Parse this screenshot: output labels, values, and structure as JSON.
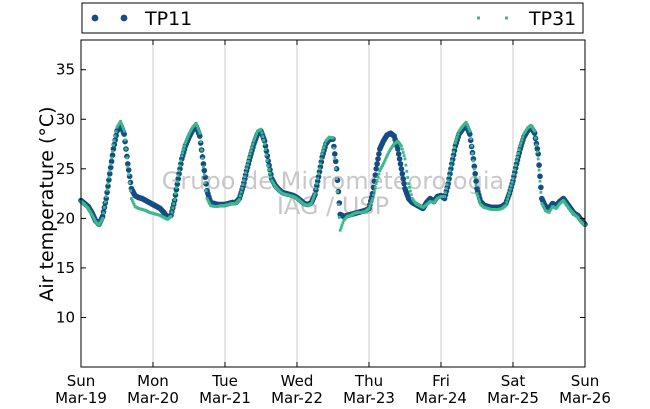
{
  "chart_data": {
    "type": "scatter",
    "title": "",
    "xlabel": "",
    "ylabel": "Air temperature (°C)",
    "ylim": [
      5,
      38
    ],
    "yticks": [
      10,
      15,
      20,
      25,
      30,
      35
    ],
    "xlim": [
      0,
      7
    ],
    "xtick_labels": [
      {
        "day": "Sun",
        "date": "Mar-19"
      },
      {
        "day": "Mon",
        "date": "Mar-20"
      },
      {
        "day": "Tue",
        "date": "Mar-21"
      },
      {
        "day": "Wed",
        "date": "Mar-22"
      },
      {
        "day": "Thu",
        "date": "Mar-23"
      },
      {
        "day": "Fri",
        "date": "Mar-24"
      },
      {
        "day": "Sat",
        "date": "Mar-25"
      },
      {
        "day": "Sun",
        "date": "Mar-26"
      }
    ],
    "grid": "vertical",
    "legend_position": "top, above plot",
    "watermark": [
      "Grupo de Micrometeorologia",
      "IAG / USP"
    ],
    "series": [
      {
        "name": "TP11",
        "color": "#154c84",
        "marker": "dot",
        "points": [
          [
            0.0,
            21.8
          ],
          [
            0.05,
            21.5
          ],
          [
            0.1,
            21.2
          ],
          [
            0.15,
            20.6
          ],
          [
            0.2,
            19.8
          ],
          [
            0.25,
            19.4
          ],
          [
            0.3,
            20.2
          ],
          [
            0.35,
            22.0
          ],
          [
            0.4,
            24.5
          ],
          [
            0.45,
            27.0
          ],
          [
            0.5,
            28.8
          ],
          [
            0.55,
            29.4
          ],
          [
            0.6,
            28.5
          ],
          [
            0.65,
            25.5
          ],
          [
            0.7,
            23.0
          ],
          [
            0.75,
            22.3
          ],
          [
            0.8,
            22.1
          ],
          [
            0.85,
            22.0
          ],
          [
            0.9,
            21.8
          ],
          [
            0.95,
            21.6
          ],
          [
            1.0,
            21.4
          ],
          [
            1.05,
            21.2
          ],
          [
            1.1,
            21.0
          ],
          [
            1.15,
            20.6
          ],
          [
            1.2,
            20.1
          ],
          [
            1.25,
            20.3
          ],
          [
            1.3,
            21.8
          ],
          [
            1.35,
            24.0
          ],
          [
            1.4,
            26.0
          ],
          [
            1.45,
            27.3
          ],
          [
            1.5,
            28.2
          ],
          [
            1.55,
            28.9
          ],
          [
            1.6,
            29.3
          ],
          [
            1.65,
            28.3
          ],
          [
            1.7,
            25.5
          ],
          [
            1.75,
            22.8
          ],
          [
            1.8,
            21.6
          ],
          [
            1.85,
            21.5
          ],
          [
            1.9,
            21.4
          ],
          [
            1.95,
            21.4
          ],
          [
            2.0,
            21.4
          ],
          [
            2.05,
            21.5
          ],
          [
            2.1,
            21.6
          ],
          [
            2.15,
            21.6
          ],
          [
            2.2,
            22.0
          ],
          [
            2.25,
            23.2
          ],
          [
            2.3,
            24.8
          ],
          [
            2.35,
            26.2
          ],
          [
            2.4,
            27.5
          ],
          [
            2.45,
            28.5
          ],
          [
            2.5,
            28.8
          ],
          [
            2.55,
            27.8
          ],
          [
            2.6,
            25.8
          ],
          [
            2.65,
            24.0
          ],
          [
            2.7,
            23.3
          ],
          [
            2.75,
            22.9
          ],
          [
            2.8,
            22.6
          ],
          [
            2.85,
            22.5
          ],
          [
            2.9,
            22.4
          ],
          [
            2.95,
            22.3
          ],
          [
            3.0,
            22.1
          ],
          [
            3.05,
            21.8
          ],
          [
            3.1,
            21.5
          ],
          [
            3.15,
            21.4
          ],
          [
            3.2,
            21.6
          ],
          [
            3.25,
            22.4
          ],
          [
            3.3,
            24.2
          ],
          [
            3.35,
            26.2
          ],
          [
            3.4,
            27.5
          ],
          [
            3.45,
            28.0
          ],
          [
            3.5,
            28.0
          ],
          [
            3.55,
            25.0
          ],
          [
            3.6,
            20.4
          ],
          [
            3.65,
            20.2
          ],
          [
            3.7,
            20.3
          ],
          [
            3.75,
            20.4
          ],
          [
            3.8,
            20.5
          ],
          [
            3.85,
            20.6
          ],
          [
            3.9,
            20.7
          ],
          [
            3.95,
            20.8
          ],
          [
            4.0,
            21.0
          ],
          [
            4.05,
            22.5
          ],
          [
            4.1,
            25.0
          ],
          [
            4.15,
            27.0
          ],
          [
            4.2,
            27.8
          ],
          [
            4.25,
            28.4
          ],
          [
            4.3,
            28.6
          ],
          [
            4.35,
            28.3
          ],
          [
            4.4,
            27.0
          ],
          [
            4.45,
            25.0
          ],
          [
            4.5,
            23.0
          ],
          [
            4.55,
            22.0
          ],
          [
            4.6,
            21.6
          ],
          [
            4.65,
            21.4
          ],
          [
            4.7,
            21.2
          ],
          [
            4.75,
            21.0
          ],
          [
            4.8,
            21.6
          ],
          [
            4.85,
            22.0
          ],
          [
            4.9,
            21.7
          ],
          [
            4.95,
            22.2
          ],
          [
            5.0,
            22.3
          ],
          [
            5.05,
            22.0
          ],
          [
            5.1,
            23.5
          ],
          [
            5.15,
            25.5
          ],
          [
            5.2,
            27.3
          ],
          [
            5.25,
            28.5
          ],
          [
            5.3,
            29.0
          ],
          [
            5.35,
            29.4
          ],
          [
            5.4,
            28.5
          ],
          [
            5.45,
            26.0
          ],
          [
            5.5,
            23.0
          ],
          [
            5.55,
            21.7
          ],
          [
            5.6,
            21.3
          ],
          [
            5.65,
            21.2
          ],
          [
            5.7,
            21.1
          ],
          [
            5.75,
            21.1
          ],
          [
            5.8,
            21.1
          ],
          [
            5.85,
            21.2
          ],
          [
            5.9,
            21.5
          ],
          [
            5.95,
            22.5
          ],
          [
            6.0,
            23.8
          ],
          [
            6.05,
            25.5
          ],
          [
            6.1,
            27.0
          ],
          [
            6.15,
            28.2
          ],
          [
            6.2,
            28.8
          ],
          [
            6.25,
            29.2
          ],
          [
            6.3,
            28.6
          ],
          [
            6.35,
            26.5
          ],
          [
            6.4,
            22.0
          ],
          [
            6.45,
            21.2
          ],
          [
            6.5,
            21.0
          ],
          [
            6.55,
            21.5
          ],
          [
            6.6,
            21.3
          ],
          [
            6.65,
            21.7
          ],
          [
            6.7,
            22.0
          ],
          [
            6.75,
            21.5
          ],
          [
            6.8,
            21.0
          ],
          [
            6.85,
            20.5
          ],
          [
            6.9,
            20.3
          ],
          [
            6.95,
            19.8
          ],
          [
            7.0,
            19.4
          ]
        ]
      },
      {
        "name": "TP31",
        "color": "#3cb88a",
        "marker": "small",
        "points": [
          [
            0.0,
            21.7
          ],
          [
            0.05,
            21.4
          ],
          [
            0.1,
            21.0
          ],
          [
            0.15,
            20.4
          ],
          [
            0.2,
            19.7
          ],
          [
            0.25,
            19.3
          ],
          [
            0.3,
            20.0
          ],
          [
            0.35,
            22.2
          ],
          [
            0.4,
            24.8
          ],
          [
            0.45,
            27.4
          ],
          [
            0.5,
            29.2
          ],
          [
            0.55,
            29.8
          ],
          [
            0.6,
            28.8
          ],
          [
            0.65,
            25.2
          ],
          [
            0.7,
            22.0
          ],
          [
            0.75,
            21.2
          ],
          [
            0.8,
            21.0
          ],
          [
            0.85,
            20.9
          ],
          [
            0.9,
            20.8
          ],
          [
            0.95,
            20.6
          ],
          [
            1.0,
            20.5
          ],
          [
            1.05,
            20.4
          ],
          [
            1.1,
            20.3
          ],
          [
            1.15,
            20.1
          ],
          [
            1.2,
            19.9
          ],
          [
            1.25,
            20.2
          ],
          [
            1.3,
            21.9
          ],
          [
            1.35,
            24.3
          ],
          [
            1.4,
            26.3
          ],
          [
            1.45,
            27.6
          ],
          [
            1.5,
            28.5
          ],
          [
            1.55,
            29.2
          ],
          [
            1.6,
            29.6
          ],
          [
            1.65,
            28.6
          ],
          [
            1.7,
            25.2
          ],
          [
            1.75,
            22.0
          ],
          [
            1.8,
            21.3
          ],
          [
            1.85,
            21.2
          ],
          [
            1.9,
            21.2
          ],
          [
            1.95,
            21.3
          ],
          [
            2.0,
            21.3
          ],
          [
            2.05,
            21.4
          ],
          [
            2.1,
            21.5
          ],
          [
            2.15,
            21.5
          ],
          [
            2.2,
            21.9
          ],
          [
            2.25,
            23.4
          ],
          [
            2.3,
            25.0
          ],
          [
            2.35,
            26.5
          ],
          [
            2.4,
            27.8
          ],
          [
            2.45,
            28.8
          ],
          [
            2.5,
            29.0
          ],
          [
            2.55,
            27.5
          ],
          [
            2.6,
            25.3
          ],
          [
            2.65,
            23.8
          ],
          [
            2.7,
            23.2
          ],
          [
            2.75,
            22.8
          ],
          [
            2.8,
            22.5
          ],
          [
            2.85,
            22.4
          ],
          [
            2.9,
            22.3
          ],
          [
            2.95,
            22.2
          ],
          [
            3.0,
            22.0
          ],
          [
            3.05,
            21.7
          ],
          [
            3.1,
            21.4
          ],
          [
            3.15,
            21.3
          ],
          [
            3.2,
            21.5
          ],
          [
            3.25,
            22.5
          ],
          [
            3.3,
            24.5
          ],
          [
            3.35,
            26.5
          ],
          [
            3.4,
            27.8
          ],
          [
            3.45,
            28.2
          ],
          [
            3.5,
            28.1
          ],
          [
            3.55,
            24.0
          ],
          [
            3.6,
            18.8
          ],
          [
            3.65,
            19.8
          ],
          [
            3.7,
            20.2
          ],
          [
            3.75,
            20.3
          ],
          [
            3.8,
            20.5
          ],
          [
            3.85,
            20.6
          ],
          [
            3.9,
            20.6
          ],
          [
            3.95,
            20.7
          ],
          [
            4.0,
            21.0
          ],
          [
            4.05,
            22.0
          ],
          [
            4.1,
            23.5
          ],
          [
            4.15,
            24.8
          ],
          [
            4.2,
            25.5
          ],
          [
            4.25,
            26.3
          ],
          [
            4.3,
            27.0
          ],
          [
            4.35,
            27.5
          ],
          [
            4.4,
            27.8
          ],
          [
            4.45,
            27.3
          ],
          [
            4.5,
            26.0
          ],
          [
            4.55,
            23.5
          ],
          [
            4.6,
            22.0
          ],
          [
            4.65,
            21.5
          ],
          [
            4.7,
            21.3
          ],
          [
            4.75,
            21.1
          ],
          [
            4.8,
            21.4
          ],
          [
            4.85,
            21.7
          ],
          [
            4.9,
            21.6
          ],
          [
            4.95,
            22.0
          ],
          [
            5.0,
            22.2
          ],
          [
            5.05,
            22.2
          ],
          [
            5.1,
            23.8
          ],
          [
            5.15,
            25.8
          ],
          [
            5.2,
            27.6
          ],
          [
            5.25,
            28.8
          ],
          [
            5.3,
            29.3
          ],
          [
            5.35,
            29.7
          ],
          [
            5.4,
            28.8
          ],
          [
            5.45,
            25.8
          ],
          [
            5.5,
            22.5
          ],
          [
            5.55,
            21.4
          ],
          [
            5.6,
            21.1
          ],
          [
            5.65,
            21.0
          ],
          [
            5.7,
            20.9
          ],
          [
            5.75,
            20.9
          ],
          [
            5.8,
            20.9
          ],
          [
            5.85,
            21.0
          ],
          [
            5.9,
            21.3
          ],
          [
            5.95,
            22.6
          ],
          [
            6.0,
            24.0
          ],
          [
            6.05,
            25.8
          ],
          [
            6.1,
            27.3
          ],
          [
            6.15,
            28.5
          ],
          [
            6.2,
            29.1
          ],
          [
            6.25,
            29.4
          ],
          [
            6.3,
            28.8
          ],
          [
            6.35,
            26.0
          ],
          [
            6.4,
            21.5
          ],
          [
            6.45,
            20.8
          ],
          [
            6.5,
            20.6
          ],
          [
            6.55,
            21.2
          ],
          [
            6.6,
            21.0
          ],
          [
            6.65,
            21.5
          ],
          [
            6.7,
            21.8
          ],
          [
            6.75,
            21.3
          ],
          [
            6.8,
            20.8
          ],
          [
            6.85,
            20.4
          ],
          [
            6.9,
            20.1
          ],
          [
            6.95,
            19.6
          ],
          [
            7.0,
            19.3
          ]
        ]
      }
    ]
  }
}
